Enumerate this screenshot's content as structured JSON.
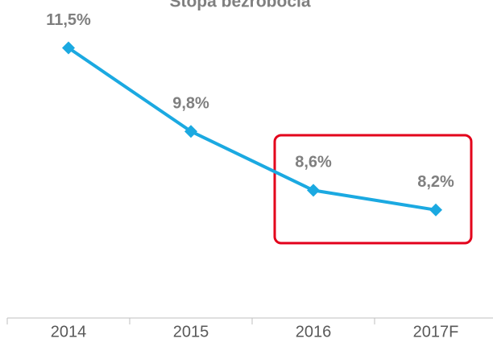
{
  "chart_data": {
    "type": "line",
    "title": "Stopa bezrobocia",
    "categories": [
      "2014",
      "2015",
      "2016",
      "2017F"
    ],
    "series": [
      {
        "name": "Stopa bezrobocia",
        "color": "#1ba9e1",
        "values": [
          11.5,
          9.8,
          8.6,
          8.2
        ]
      }
    ],
    "value_labels": [
      "11,5%",
      "9,8%",
      "8,6%",
      "8,2%"
    ],
    "ylim": [
      6,
      12.5
    ]
  }
}
